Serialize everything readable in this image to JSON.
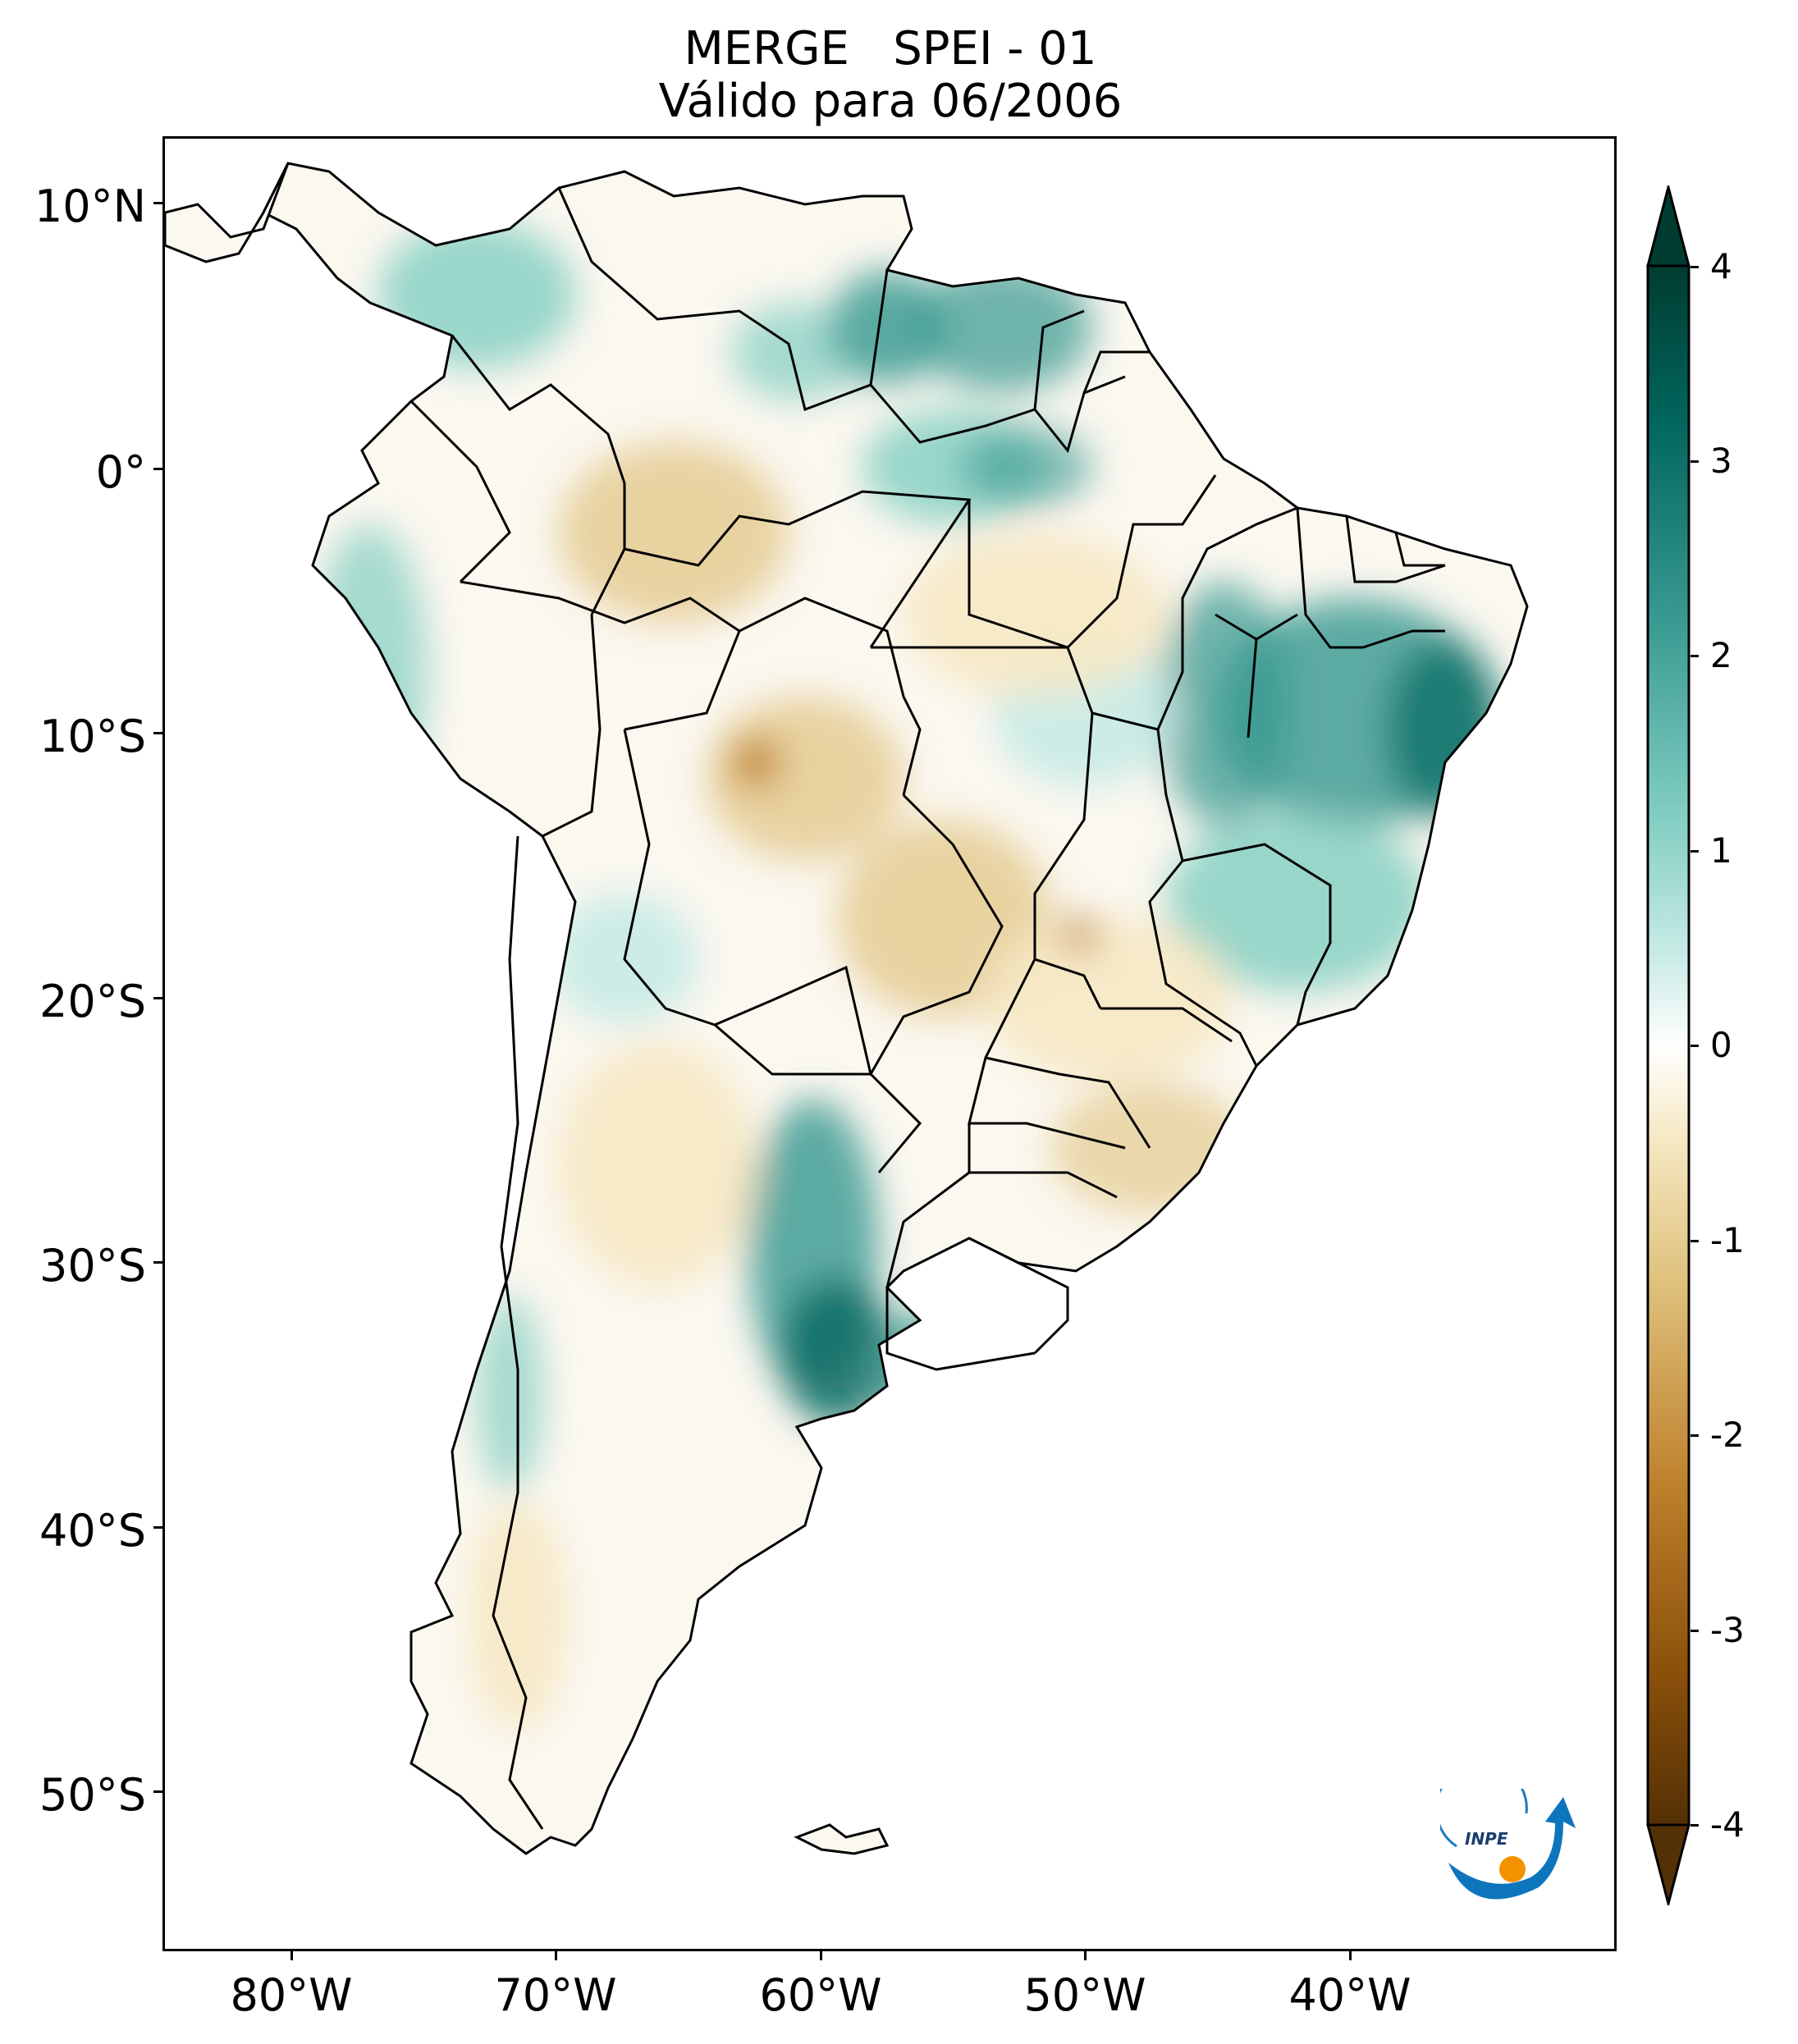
{
  "title": {
    "line1": "MERGE   SPEI - 01",
    "line2": "Válido para 06/2006"
  },
  "latitude_labels": [
    "10°N",
    "0°",
    "10°S",
    "20°S",
    "30°S",
    "40°S",
    "50°S"
  ],
  "longitude_labels": [
    "80°W",
    "70°W",
    "60°W",
    "50°W",
    "40°W"
  ],
  "colorbar": {
    "ticks": [
      "4",
      "3",
      "2",
      "1",
      "0",
      "-1",
      "-2",
      "-3",
      "-4"
    ],
    "min": -4,
    "max": 4,
    "extend": "both",
    "colormap": "BrBG",
    "colors": [
      "#543005",
      "#8c510a",
      "#bf812d",
      "#dfc27d",
      "#f6e8c3",
      "#ffffff",
      "#c7eae5",
      "#80cdc1",
      "#35978f",
      "#01665e",
      "#003c30"
    ]
  },
  "map": {
    "region": "South America",
    "variable": "SPEI - 01"
  },
  "logo": {
    "text": "INPE"
  }
}
